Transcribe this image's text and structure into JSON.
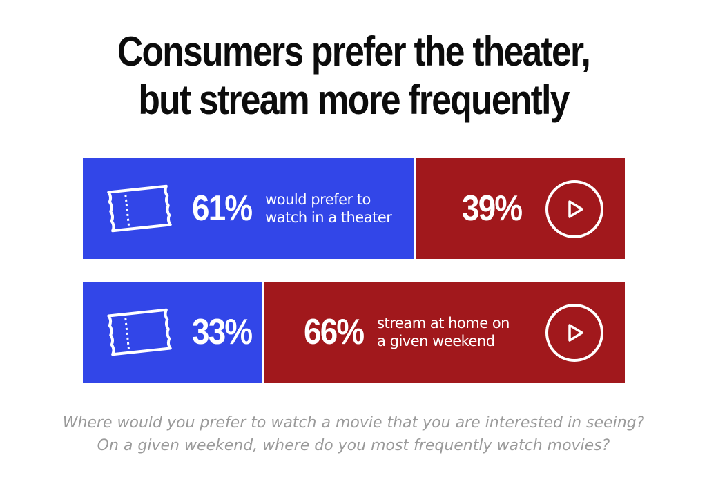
{
  "title": {
    "line1": "Consumers prefer the theater,",
    "line2": "but stream more frequently"
  },
  "questions": {
    "line1": "Where would you prefer to watch a movie that you are interested in seeing?",
    "line2": "On a given weekend, where do you most frequently watch movies?"
  },
  "colors": {
    "theater": "#3246e8",
    "stream": "#a1181c",
    "divider": "#ffffff"
  },
  "chart_data": {
    "type": "bar",
    "orientation": "horizontal",
    "stacked": true,
    "xlim": [
      0,
      100
    ],
    "rows": [
      {
        "theater": {
          "value": 61,
          "label": "61%",
          "text": "would prefer to\nwatch in a theater"
        },
        "stream": {
          "value": 39,
          "label": "39%",
          "text": ""
        }
      },
      {
        "theater": {
          "value": 33,
          "label": "33%",
          "text": ""
        },
        "stream": {
          "value": 66,
          "label": "66%",
          "text": "stream at home on\na given weekend"
        }
      }
    ]
  }
}
